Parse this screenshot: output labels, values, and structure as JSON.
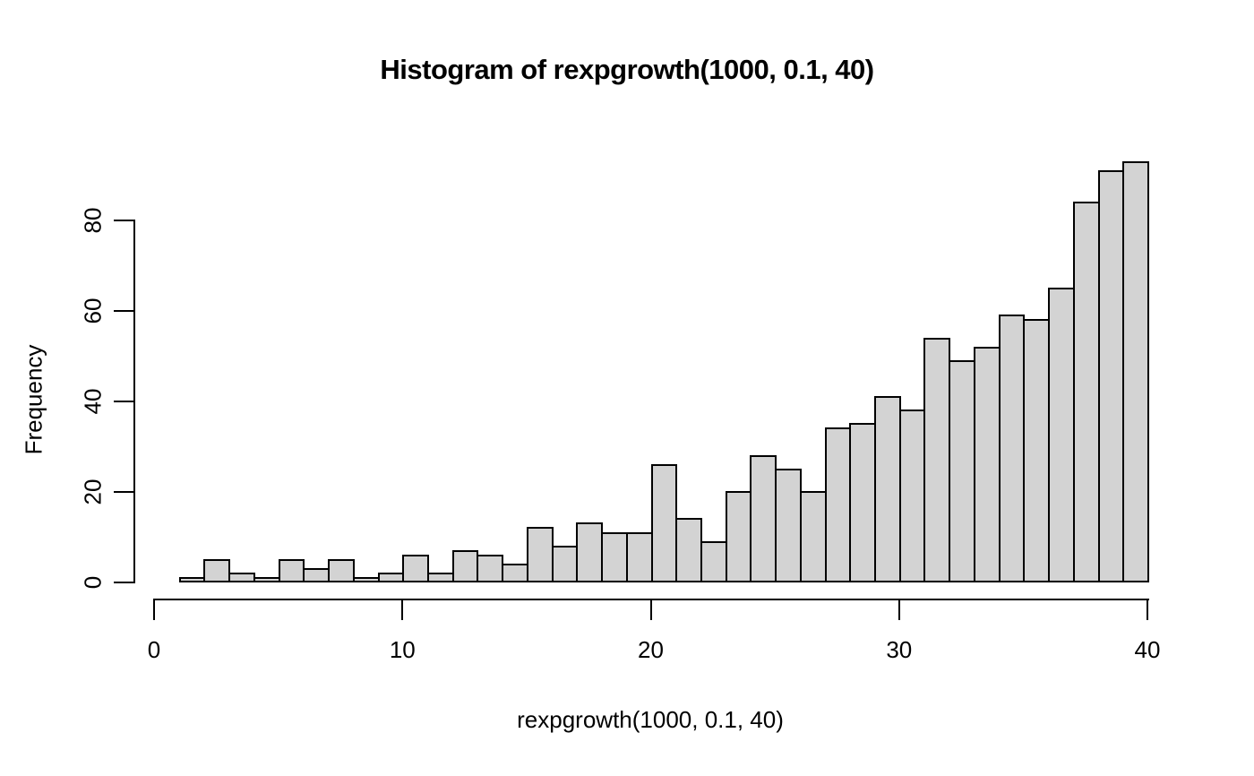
{
  "title": "Histogram of rexpgrowth(1000, 0.1, 40)",
  "chart_data": {
    "type": "bar",
    "subtype": "histogram",
    "title": "Histogram of rexpgrowth(1000, 0.1, 40)",
    "xlabel": "rexpgrowth(1000, 0.1, 40)",
    "ylabel": "Frequency",
    "bin_start": 1,
    "bin_width": 1,
    "frequencies": [
      1,
      5,
      2,
      1,
      5,
      3,
      5,
      1,
      2,
      6,
      2,
      7,
      6,
      4,
      12,
      8,
      13,
      11,
      11,
      26,
      14,
      9,
      20,
      28,
      25,
      20,
      34,
      35,
      41,
      38,
      54,
      49,
      52,
      59,
      58,
      65,
      84,
      91,
      93
    ],
    "x_ticks": [
      "0",
      "10",
      "20",
      "30",
      "40"
    ],
    "y_ticks": [
      "0",
      "20",
      "40",
      "60",
      "80"
    ],
    "xlim": [
      0,
      40
    ],
    "ylim": [
      0,
      93
    ],
    "grid": "off",
    "legend": "none",
    "bar_fill": "#d3d3d3",
    "bar_border": "#000000",
    "background": "#ffffff"
  }
}
